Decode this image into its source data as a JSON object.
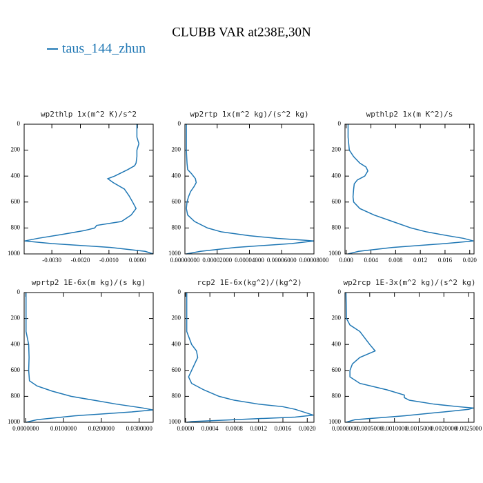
{
  "title": "CLUBB VAR at238E,30N",
  "legend": {
    "label": "taus_144_zhun",
    "color": "#1f77b4"
  },
  "chart_data": [
    {
      "type": "line",
      "title": "wp2thlp  1x(m^2 K)/s^2",
      "y": [
        0,
        100,
        150,
        200,
        250,
        300,
        320,
        350,
        400,
        420,
        450,
        500,
        550,
        600,
        650,
        700,
        750,
        780,
        800,
        820,
        850,
        880,
        900,
        920,
        950,
        980,
        1000
      ],
      "series": [
        {
          "color": "#1f77b4",
          "values": [
            -2e-05,
            -2e-05,
            5e-05,
            -2e-05,
            -2e-05,
            -5e-05,
            -0.0001,
            -0.00034,
            -0.0008,
            -0.00104,
            -0.00085,
            -0.00046,
            -0.0003,
            -0.00017,
            -5e-05,
            -0.00022,
            -0.00056,
            -0.00143,
            -0.0015,
            -0.00186,
            -0.00264,
            -0.00349,
            -0.00395,
            -0.003,
            -0.00094,
            0.00027,
            0.00055
          ]
        }
      ],
      "xlim": [
        -0.00397,
        0.00055
      ],
      "xticks": [
        {
          "value": -0.003,
          "label": "-0.0030"
        },
        {
          "value": -0.002,
          "label": "-0.0020"
        },
        {
          "value": -0.001,
          "label": "-0.0010"
        },
        {
          "value": 0,
          "label": "0.0000"
        }
      ],
      "ylim": [
        0,
        1000
      ],
      "invert_y": true,
      "yticks": [
        0,
        200,
        400,
        600,
        800,
        1000
      ]
    },
    {
      "type": "line",
      "title": "wp2rtp  1x(m^2 kg)/(s^2 kg)",
      "y": [
        0,
        100,
        200,
        300,
        350,
        380,
        420,
        450,
        480,
        520,
        560,
        600,
        650,
        700,
        750,
        800,
        830,
        860,
        880,
        895,
        900,
        920,
        950,
        980,
        1000
      ],
      "series": [
        {
          "color": "#1f77b4",
          "values": [
            9e-07,
            9e-07,
            9e-07,
            1.3e-06,
            1.7e-06,
            4e-06,
            6.5e-06,
            7e-06,
            5.7e-06,
            3.5e-06,
            2.2e-06,
            1.3e-06,
            9e-07,
            1.7e-06,
            6e-06,
            1.4e-05,
            2.26e-05,
            4e-05,
            5.74e-05,
            7.48e-05,
            8e-05,
            6.61e-05,
            3.13e-05,
            9.6e-06,
            9e-07
          ]
        }
      ],
      "xlim": [
        0,
        8e-05
      ],
      "xticks": [
        {
          "value": 0,
          "label": "0.00000000"
        },
        {
          "value": 2e-05,
          "label": "0.00002000"
        },
        {
          "value": 4e-05,
          "label": "0.00004000"
        },
        {
          "value": 6e-05,
          "label": "0.00006000"
        },
        {
          "value": 8e-05,
          "label": "0.00008000"
        }
      ],
      "ylim": [
        0,
        1000
      ],
      "invert_y": true,
      "yticks": [
        0,
        200,
        400,
        600,
        800,
        1000
      ]
    },
    {
      "type": "line",
      "title": "wpthlp2  1x(m K^2)/s",
      "y": [
        0,
        100,
        200,
        250,
        300,
        330,
        360,
        400,
        430,
        460,
        500,
        560,
        600,
        650,
        700,
        750,
        800,
        830,
        860,
        880,
        900,
        920,
        950,
        980,
        1000
      ],
      "series": [
        {
          "color": "#1f77b4",
          "values": [
            0.0003,
            0.0003,
            0.0005,
            0.0012,
            0.0022,
            0.0032,
            0.0035,
            0.003,
            0.0018,
            0.0013,
            0.0012,
            0.0011,
            0.0012,
            0.0022,
            0.0045,
            0.0075,
            0.0105,
            0.013,
            0.0165,
            0.019,
            0.0206,
            0.016,
            0.0075,
            0.002,
            0.0003
          ]
        }
      ],
      "xlim": [
        -0.0002,
        0.0207
      ],
      "xticks": [
        {
          "value": 0,
          "label": "0.000"
        },
        {
          "value": 0.004,
          "label": "0.004"
        },
        {
          "value": 0.008,
          "label": "0.008"
        },
        {
          "value": 0.012,
          "label": "0.012"
        },
        {
          "value": 0.016,
          "label": "0.016"
        },
        {
          "value": 0.02,
          "label": "0.020"
        }
      ],
      "ylim": [
        0,
        1000
      ],
      "invert_y": true,
      "yticks": [
        0,
        200,
        400,
        600,
        800,
        1000
      ]
    },
    {
      "type": "line",
      "title": "wprtp2  1E-6x(m kg)/(s kg)",
      "y": [
        0,
        300,
        400,
        500,
        600,
        680,
        720,
        760,
        800,
        830,
        860,
        890,
        905,
        920,
        950,
        980,
        1000
      ],
      "series": [
        {
          "color": "#1f77b4",
          "values": [
            0.0001,
            0.0001,
            0.0008,
            0.0009,
            0.0008,
            0.001,
            0.003,
            0.007,
            0.012,
            0.018,
            0.024,
            0.031,
            0.0336,
            0.028,
            0.013,
            0.003,
            0.0001
          ]
        }
      ],
      "xlim": [
        -0.0004,
        0.0337
      ],
      "xticks": [
        {
          "value": 0,
          "label": "0.0000000"
        },
        {
          "value": 0.01,
          "label": "0.0100000"
        },
        {
          "value": 0.02,
          "label": "0.0200000"
        },
        {
          "value": 0.03,
          "label": "0.0300000"
        }
      ],
      "ylim": [
        0,
        1000
      ],
      "invert_y": true,
      "yticks": [
        0,
        200,
        400,
        600,
        800,
        1000
      ]
    },
    {
      "type": "line",
      "title": "rcp2  1E-6x(kg^2)/(kg^2)",
      "y": [
        0,
        300,
        400,
        450,
        500,
        550,
        600,
        650,
        700,
        750,
        800,
        830,
        860,
        880,
        900,
        930,
        945,
        960,
        980,
        995,
        1000
      ],
      "series": [
        {
          "color": "#1f77b4",
          "values": [
            2e-05,
            2e-05,
            0.0001,
            0.00018,
            0.0002,
            0.00015,
            0.0001,
            5e-05,
            0.0001,
            0.0003,
            0.00055,
            0.0008,
            0.0012,
            0.0016,
            0.0018,
            0.002,
            0.0021,
            0.0018,
            0.0008,
            0.0001,
            2e-05
          ]
        }
      ],
      "xlim": [
        -1e-05,
        0.00211
      ],
      "xticks": [
        {
          "value": 0,
          "label": "0.0000"
        },
        {
          "value": 0.0004,
          "label": "0.0004"
        },
        {
          "value": 0.0008,
          "label": "0.0008"
        },
        {
          "value": 0.0012,
          "label": "0.0012"
        },
        {
          "value": 0.0016,
          "label": "0.0016"
        },
        {
          "value": 0.002,
          "label": "0.0020"
        }
      ],
      "ylim": [
        0,
        1000
      ],
      "invert_y": true,
      "yticks": [
        0,
        200,
        400,
        600,
        800,
        1000
      ]
    },
    {
      "type": "line",
      "title": "wp2rcp  1E-3x(m^2 kg)/(s^2 kg)",
      "y": [
        0,
        200,
        250,
        300,
        350,
        400,
        450,
        500,
        550,
        600,
        650,
        700,
        750,
        790,
        810,
        830,
        860,
        880,
        890,
        900,
        920,
        950,
        980,
        1000
      ],
      "series": [
        {
          "color": "#1f77b4",
          "values": [
            2e-05,
            3e-05,
            0.0001,
            0.0003,
            0.0004,
            0.0005,
            0.00061,
            0.0003,
            0.00015,
            0.0001,
            0.0001,
            0.0003,
            0.00085,
            0.0012,
            0.0012,
            0.0013,
            0.0018,
            0.0023,
            0.0026,
            0.0025,
            0.002,
            0.0012,
            0.0002,
            2e-05
          ]
        }
      ],
      "xlim": [
        0,
        0.00261
      ],
      "xticks": [
        {
          "value": 0,
          "label": "0.0000000"
        },
        {
          "value": 0.0005,
          "label": "0.0005000"
        },
        {
          "value": 0.001,
          "label": "0.0010000"
        },
        {
          "value": 0.0015,
          "label": "0.0015000"
        },
        {
          "value": 0.002,
          "label": "0.0020000"
        },
        {
          "value": 0.0025,
          "label": "0.0025000"
        }
      ],
      "ylim": [
        0,
        1000
      ],
      "invert_y": true,
      "yticks": [
        0,
        200,
        400,
        600,
        800,
        1000
      ]
    }
  ]
}
